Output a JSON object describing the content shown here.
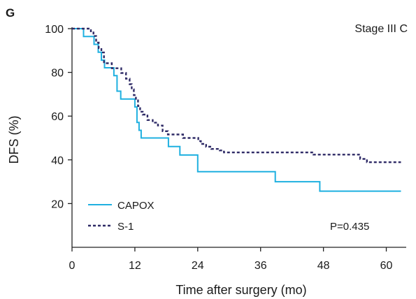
{
  "panel_letter": "G",
  "chart_data": {
    "type": "line",
    "step": true,
    "title": "",
    "subtitle_corner": "Stage III C",
    "xlabel": "Time after surgery (mo)",
    "ylabel": "DFS (%)",
    "xlim": [
      0,
      63
    ],
    "ylim": [
      0,
      100
    ],
    "x_ticks": [
      0,
      12,
      24,
      36,
      48,
      60
    ],
    "y_ticks": [
      20,
      40,
      60,
      80,
      100
    ],
    "x_tick_labels": [
      "0",
      "12",
      "24",
      "36",
      "48",
      "60"
    ],
    "y_tick_labels": [
      "20",
      "40",
      "60",
      "80",
      "100"
    ],
    "grid": false,
    "legend_position": "bottom-left",
    "annotation": "P=0.435",
    "series": [
      {
        "name": "CAPOX",
        "color": "#1fb0e0",
        "style": "solid",
        "x": [
          0,
          2.2,
          4.2,
          5.0,
          5.6,
          6.2,
          8.0,
          8.6,
          9.3,
          12.0,
          12.4,
          12.8,
          13.2,
          18.4,
          20.6,
          24.0,
          38.8,
          47.3,
          62.8
        ],
        "y": [
          100,
          96.4,
          92.8,
          89.2,
          85.6,
          82.1,
          78.5,
          71.4,
          67.8,
          64.2,
          57.1,
          53.5,
          50.0,
          46.1,
          42.2,
          34.6,
          30.0,
          25.7,
          25.7
        ]
      },
      {
        "name": "S-1",
        "color": "#2e2a66",
        "style": "dashed",
        "x": [
          0,
          3.6,
          4.1,
          4.6,
          5.1,
          5.6,
          6.1,
          7.6,
          9.4,
          10.3,
          11.0,
          11.4,
          11.8,
          12.2,
          12.6,
          13.0,
          13.5,
          14.4,
          15.4,
          16.4,
          17.3,
          18.3,
          21.2,
          24.1,
          24.6,
          25.6,
          26.6,
          28.2,
          29.0,
          37.0,
          46.1,
          55.0,
          56.3,
          62.8
        ],
        "y": [
          100,
          98.8,
          96.6,
          93.6,
          91.1,
          89.1,
          84.2,
          81.9,
          79.7,
          77.1,
          74.6,
          72.2,
          69.6,
          67.2,
          64.6,
          62.0,
          60.7,
          58.2,
          57.0,
          55.7,
          53.1,
          51.6,
          50.0,
          48.6,
          47.3,
          46.0,
          45.0,
          44.3,
          43.4,
          43.4,
          42.4,
          40.4,
          38.9,
          38.9
        ]
      }
    ]
  }
}
